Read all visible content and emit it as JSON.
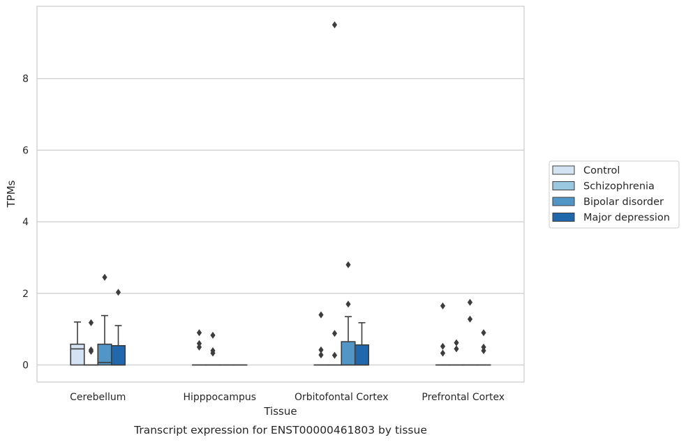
{
  "chart_data": {
    "type": "box",
    "caption": "Transcript expression for ENST00000461803 by tissue",
    "xlabel": "Tissue",
    "ylabel": "TPMs",
    "ylim": [
      -0.45,
      10.0
    ],
    "yticks": [
      0,
      2,
      4,
      6,
      8
    ],
    "grid": true,
    "legend_position": "right",
    "categories": [
      "Cerebellum",
      "Hipppocampus",
      "Orbitofontal Cortex",
      "Prefrontal Cortex"
    ],
    "series": [
      {
        "name": "Control",
        "color": "#d3e3f3",
        "boxes": [
          {
            "q1": 0.0,
            "median": 0.45,
            "q3": 0.58,
            "whislo": 0.0,
            "whishi": 1.2,
            "fliers": []
          },
          {
            "q1": 0.0,
            "median": 0.0,
            "q3": 0.0,
            "whislo": 0.0,
            "whishi": 0.0,
            "fliers": [
              0.5,
              0.6,
              0.9
            ]
          },
          {
            "q1": 0.0,
            "median": 0.0,
            "q3": 0.0,
            "whislo": 0.0,
            "whishi": 0.0,
            "fliers": [
              0.28,
              0.42,
              1.4
            ]
          },
          {
            "q1": 0.0,
            "median": 0.0,
            "q3": 0.0,
            "whislo": 0.0,
            "whishi": 0.0,
            "fliers": [
              0.33,
              0.52,
              1.65
            ]
          }
        ]
      },
      {
        "name": "Schizophrenia",
        "color": "#9ac8e0",
        "boxes": [
          {
            "q1": 0.0,
            "median": 0.0,
            "q3": 0.0,
            "whislo": 0.0,
            "whishi": 0.0,
            "fliers": [
              0.38,
              0.42,
              1.18
            ]
          },
          {
            "q1": 0.0,
            "median": 0.0,
            "q3": 0.0,
            "whislo": 0.0,
            "whishi": 0.0,
            "fliers": [
              0.33,
              0.4,
              0.83
            ]
          },
          {
            "q1": 0.0,
            "median": 0.0,
            "q3": 0.0,
            "whislo": 0.0,
            "whishi": 0.0,
            "fliers": [
              0.27,
              0.88,
              9.5
            ]
          },
          {
            "q1": 0.0,
            "median": 0.0,
            "q3": 0.0,
            "whislo": 0.0,
            "whishi": 0.0,
            "fliers": [
              0.45,
              0.62
            ]
          }
        ]
      },
      {
        "name": "Bipolar disorder",
        "color": "#5296c8",
        "boxes": [
          {
            "q1": 0.0,
            "median": 0.07,
            "q3": 0.58,
            "whislo": 0.0,
            "whishi": 1.38,
            "fliers": [
              2.45
            ]
          },
          {
            "q1": 0.0,
            "median": 0.0,
            "q3": 0.0,
            "whislo": 0.0,
            "whishi": 0.0,
            "fliers": []
          },
          {
            "q1": 0.0,
            "median": 0.0,
            "q3": 0.65,
            "whislo": 0.0,
            "whishi": 1.35,
            "fliers": [
              1.7,
              2.8
            ]
          },
          {
            "q1": 0.0,
            "median": 0.0,
            "q3": 0.0,
            "whislo": 0.0,
            "whishi": 0.0,
            "fliers": [
              1.28,
              1.75
            ]
          }
        ]
      },
      {
        "name": "Major depression",
        "color": "#2167ac",
        "boxes": [
          {
            "q1": 0.0,
            "median": 0.0,
            "q3": 0.54,
            "whislo": 0.0,
            "whishi": 1.1,
            "fliers": [
              2.03
            ]
          },
          {
            "q1": 0.0,
            "median": 0.0,
            "q3": 0.0,
            "whislo": 0.0,
            "whishi": 0.0,
            "fliers": []
          },
          {
            "q1": 0.0,
            "median": 0.0,
            "q3": 0.56,
            "whislo": 0.0,
            "whishi": 1.18,
            "fliers": []
          },
          {
            "q1": 0.0,
            "median": 0.0,
            "q3": 0.0,
            "whislo": 0.0,
            "whishi": 0.0,
            "fliers": [
              0.4,
              0.5,
              0.9
            ]
          }
        ]
      }
    ]
  }
}
